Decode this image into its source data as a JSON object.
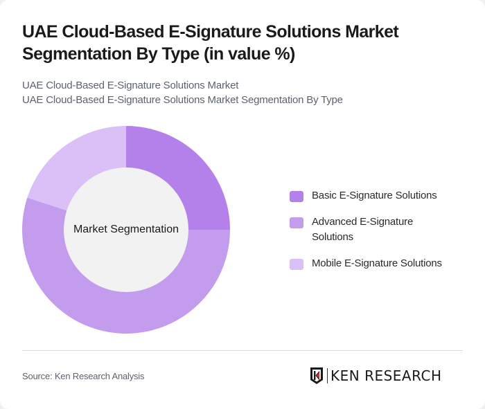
{
  "header": {
    "title": "UAE Cloud-Based E-Signature Solutions Market Segmentation By Type (in value %)",
    "subtitle_line1": "UAE Cloud-Based E-Signature Solutions Market",
    "subtitle_line2": "UAE Cloud-Based E-Signature Solutions Market Segmentation By Type"
  },
  "chart": {
    "center_label": "Market Segmentation"
  },
  "legend": [
    {
      "label": "Basic E-Signature Solutions",
      "color": "#B481EA"
    },
    {
      "label": "Advanced E-Signature Solutions",
      "color": "#C39CEE"
    },
    {
      "label": "Mobile E-Signature Solutions",
      "color": "#DBC0F7"
    }
  ],
  "footer": {
    "source": "Source: Ken Research Analysis",
    "logo_text": "KEN RESEARCH"
  },
  "chart_data": {
    "type": "pie",
    "subtype": "donut",
    "title": "UAE Cloud-Based E-Signature Solutions Market Segmentation By Type (in value %)",
    "center_label": "Market Segmentation",
    "categories": [
      "Basic E-Signature Solutions",
      "Advanced E-Signature Solutions",
      "Mobile E-Signature Solutions"
    ],
    "values": [
      25,
      55,
      20
    ],
    "colors": [
      "#B481EA",
      "#C39CEE",
      "#DBC0F7"
    ],
    "unit": "%",
    "legend_position": "right"
  }
}
